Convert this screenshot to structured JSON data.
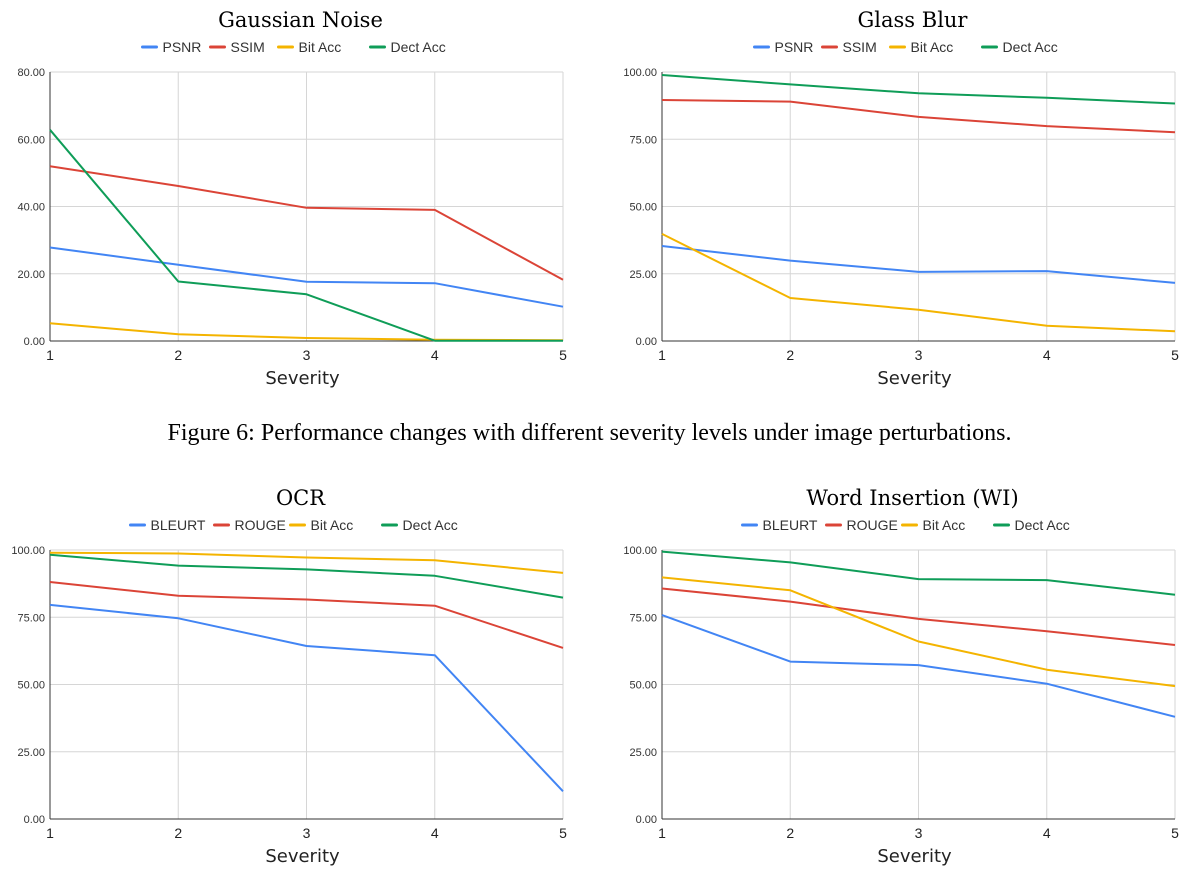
{
  "caption": "Figure 6: Performance changes with different severity levels under image perturbations.",
  "chart_data": [
    {
      "type": "line",
      "title": "Gaussian Noise",
      "xlabel": "Severity",
      "ylabel": "",
      "x": [
        1,
        2,
        3,
        4,
        5
      ],
      "ylim": [
        0,
        80
      ],
      "yticks": [
        "0.00",
        "20.00",
        "40.00",
        "60.00",
        "80.00"
      ],
      "legend_position": "top",
      "grid": true,
      "series": [
        {
          "name": "PSNR",
          "color": "#4285f4",
          "values": [
            27.8,
            22.7,
            17.6,
            17.2,
            10.2
          ]
        },
        {
          "name": "SSIM",
          "color": "#db4437",
          "values": [
            52.0,
            46.1,
            39.6,
            39.0,
            18.2
          ]
        },
        {
          "name": "Bit Acc",
          "color": "#f4b400",
          "values": [
            5.3,
            2.0,
            0.9,
            0.4,
            0.2
          ]
        },
        {
          "name": "Dect Acc",
          "color": "#0f9d58",
          "values": [
            62.8,
            17.7,
            13.9,
            0.1,
            0.1
          ]
        }
      ]
    },
    {
      "type": "line",
      "title": "Glass Blur",
      "xlabel": "Severity",
      "ylabel": "",
      "x": [
        1,
        2,
        3,
        4,
        5
      ],
      "ylim": [
        0,
        100
      ],
      "yticks": [
        "0.00",
        "25.00",
        "50.00",
        "75.00",
        "100.00"
      ],
      "legend_position": "top",
      "grid": true,
      "series": [
        {
          "name": "PSNR",
          "color": "#4285f4",
          "values": [
            35.3,
            29.9,
            25.7,
            26.0,
            21.6
          ]
        },
        {
          "name": "SSIM",
          "color": "#db4437",
          "values": [
            89.6,
            89.0,
            83.3,
            79.9,
            77.6
          ]
        },
        {
          "name": "Bit Acc",
          "color": "#f4b400",
          "values": [
            39.8,
            16.0,
            11.6,
            5.7,
            3.6
          ]
        },
        {
          "name": "Dect Acc",
          "color": "#0f9d58",
          "values": [
            98.9,
            95.4,
            92.1,
            90.4,
            88.3
          ]
        }
      ]
    },
    {
      "type": "line",
      "title": "OCR",
      "xlabel": "Severity",
      "ylabel": "",
      "x": [
        1,
        2,
        3,
        4,
        5
      ],
      "ylim": [
        0,
        100
      ],
      "yticks": [
        "0.00",
        "25.00",
        "50.00",
        "75.00",
        "100.00"
      ],
      "legend_position": "top",
      "grid": true,
      "series": [
        {
          "name": "BLEURT",
          "color": "#4285f4",
          "values": [
            79.6,
            74.6,
            64.3,
            60.9,
            10.3
          ]
        },
        {
          "name": "ROUGE",
          "color": "#db4437",
          "values": [
            88.1,
            83.0,
            81.6,
            79.3,
            63.6
          ]
        },
        {
          "name": "Bit Acc",
          "color": "#f4b400",
          "values": [
            99.0,
            98.7,
            97.2,
            96.2,
            91.5
          ]
        },
        {
          "name": "Dect Acc",
          "color": "#0f9d58",
          "values": [
            98.2,
            94.2,
            92.8,
            90.4,
            82.3
          ]
        }
      ]
    },
    {
      "type": "line",
      "title": "Word Insertion (WI)",
      "xlabel": "Severity",
      "ylabel": "",
      "x": [
        1,
        2,
        3,
        4,
        5
      ],
      "ylim": [
        0,
        100
      ],
      "yticks": [
        "0.00",
        "25.00",
        "50.00",
        "75.00",
        "100.00"
      ],
      "legend_position": "top",
      "grid": true,
      "series": [
        {
          "name": "BLEURT",
          "color": "#4285f4",
          "values": [
            75.8,
            58.5,
            57.2,
            50.3,
            38.0
          ]
        },
        {
          "name": "ROUGE",
          "color": "#db4437",
          "values": [
            85.7,
            80.8,
            74.4,
            69.8,
            64.7
          ]
        },
        {
          "name": "Bit Acc",
          "color": "#f4b400",
          "values": [
            89.8,
            85.0,
            66.0,
            55.5,
            49.4
          ]
        },
        {
          "name": "Dect Acc",
          "color": "#0f9d58",
          "values": [
            99.4,
            95.4,
            89.2,
            88.8,
            83.4
          ]
        }
      ]
    }
  ]
}
